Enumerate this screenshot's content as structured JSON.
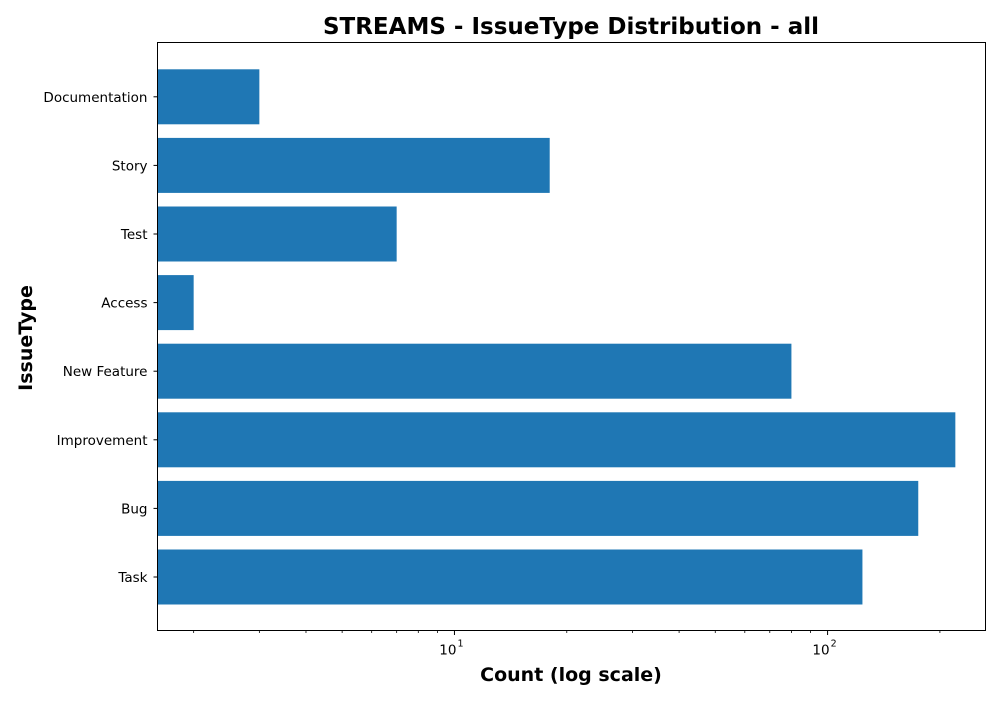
{
  "chart_data": {
    "type": "bar",
    "orientation": "horizontal",
    "title": "STREAMS - IssueType Distribution - all",
    "xlabel": "Count (log scale)",
    "ylabel": "IssueType",
    "x_scale": "log",
    "xlim": [
      1.6,
      265
    ],
    "x_major_ticks": [
      {
        "value": 10,
        "base": "10",
        "exponent": "1"
      },
      {
        "value": 100,
        "base": "10",
        "exponent": "2"
      }
    ],
    "grid": false,
    "legend": "none",
    "bar_color": "#1f77b4",
    "categories": [
      "Task",
      "Bug",
      "Improvement",
      "New Feature",
      "Access",
      "Test",
      "Story",
      "Documentation"
    ],
    "values": [
      124,
      175,
      220,
      80,
      2,
      7,
      18,
      3
    ]
  }
}
